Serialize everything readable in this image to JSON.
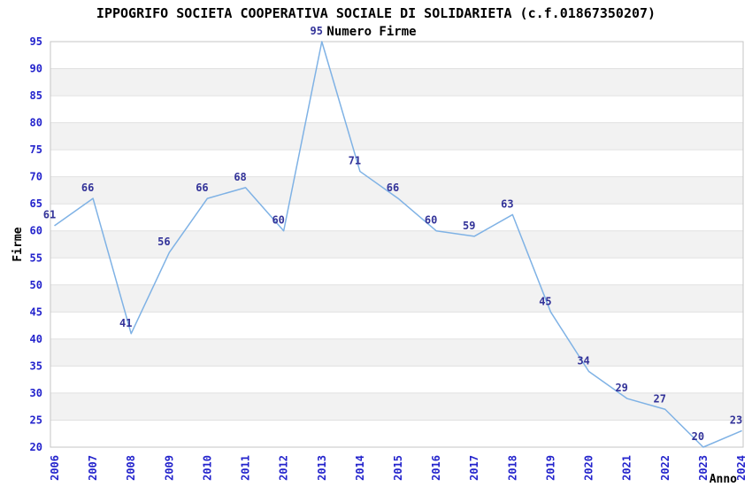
{
  "chart_data": {
    "type": "line",
    "title": "IPPOGRIFO SOCIETA COOPERATIVA SOCIALE DI SOLIDARIETA (c.f.01867350207)",
    "subtitle": "Numero Firme",
    "xlabel": "Anno",
    "ylabel": "Firme",
    "categories": [
      "2006",
      "2007",
      "2008",
      "2009",
      "2010",
      "2011",
      "2012",
      "2013",
      "2014",
      "2015",
      "2016",
      "2017",
      "2018",
      "2019",
      "2020",
      "2021",
      "2022",
      "2023",
      "2024"
    ],
    "series": [
      {
        "name": "Numero Firme",
        "values": [
          61,
          66,
          41,
          56,
          66,
          68,
          60,
          95,
          71,
          66,
          60,
          59,
          63,
          45,
          34,
          29,
          27,
          20,
          23
        ]
      }
    ],
    "ylim": [
      20,
      95
    ],
    "yticks": [
      20,
      25,
      30,
      35,
      40,
      45,
      50,
      55,
      60,
      65,
      70,
      75,
      80,
      85,
      90,
      95
    ],
    "grid": true,
    "banded_background": true,
    "point_labels_visible": true,
    "legend_position": "none"
  },
  "colors": {
    "line": "#7fb2e5",
    "point_label": "#333399",
    "tick_label": "#2323cc",
    "title": "#000000",
    "axis_label": "#000000",
    "band": "#f2f2f2",
    "gridline": "#e0e0e0",
    "plot_border": "#c6c6c6",
    "background": "#ffffff"
  }
}
